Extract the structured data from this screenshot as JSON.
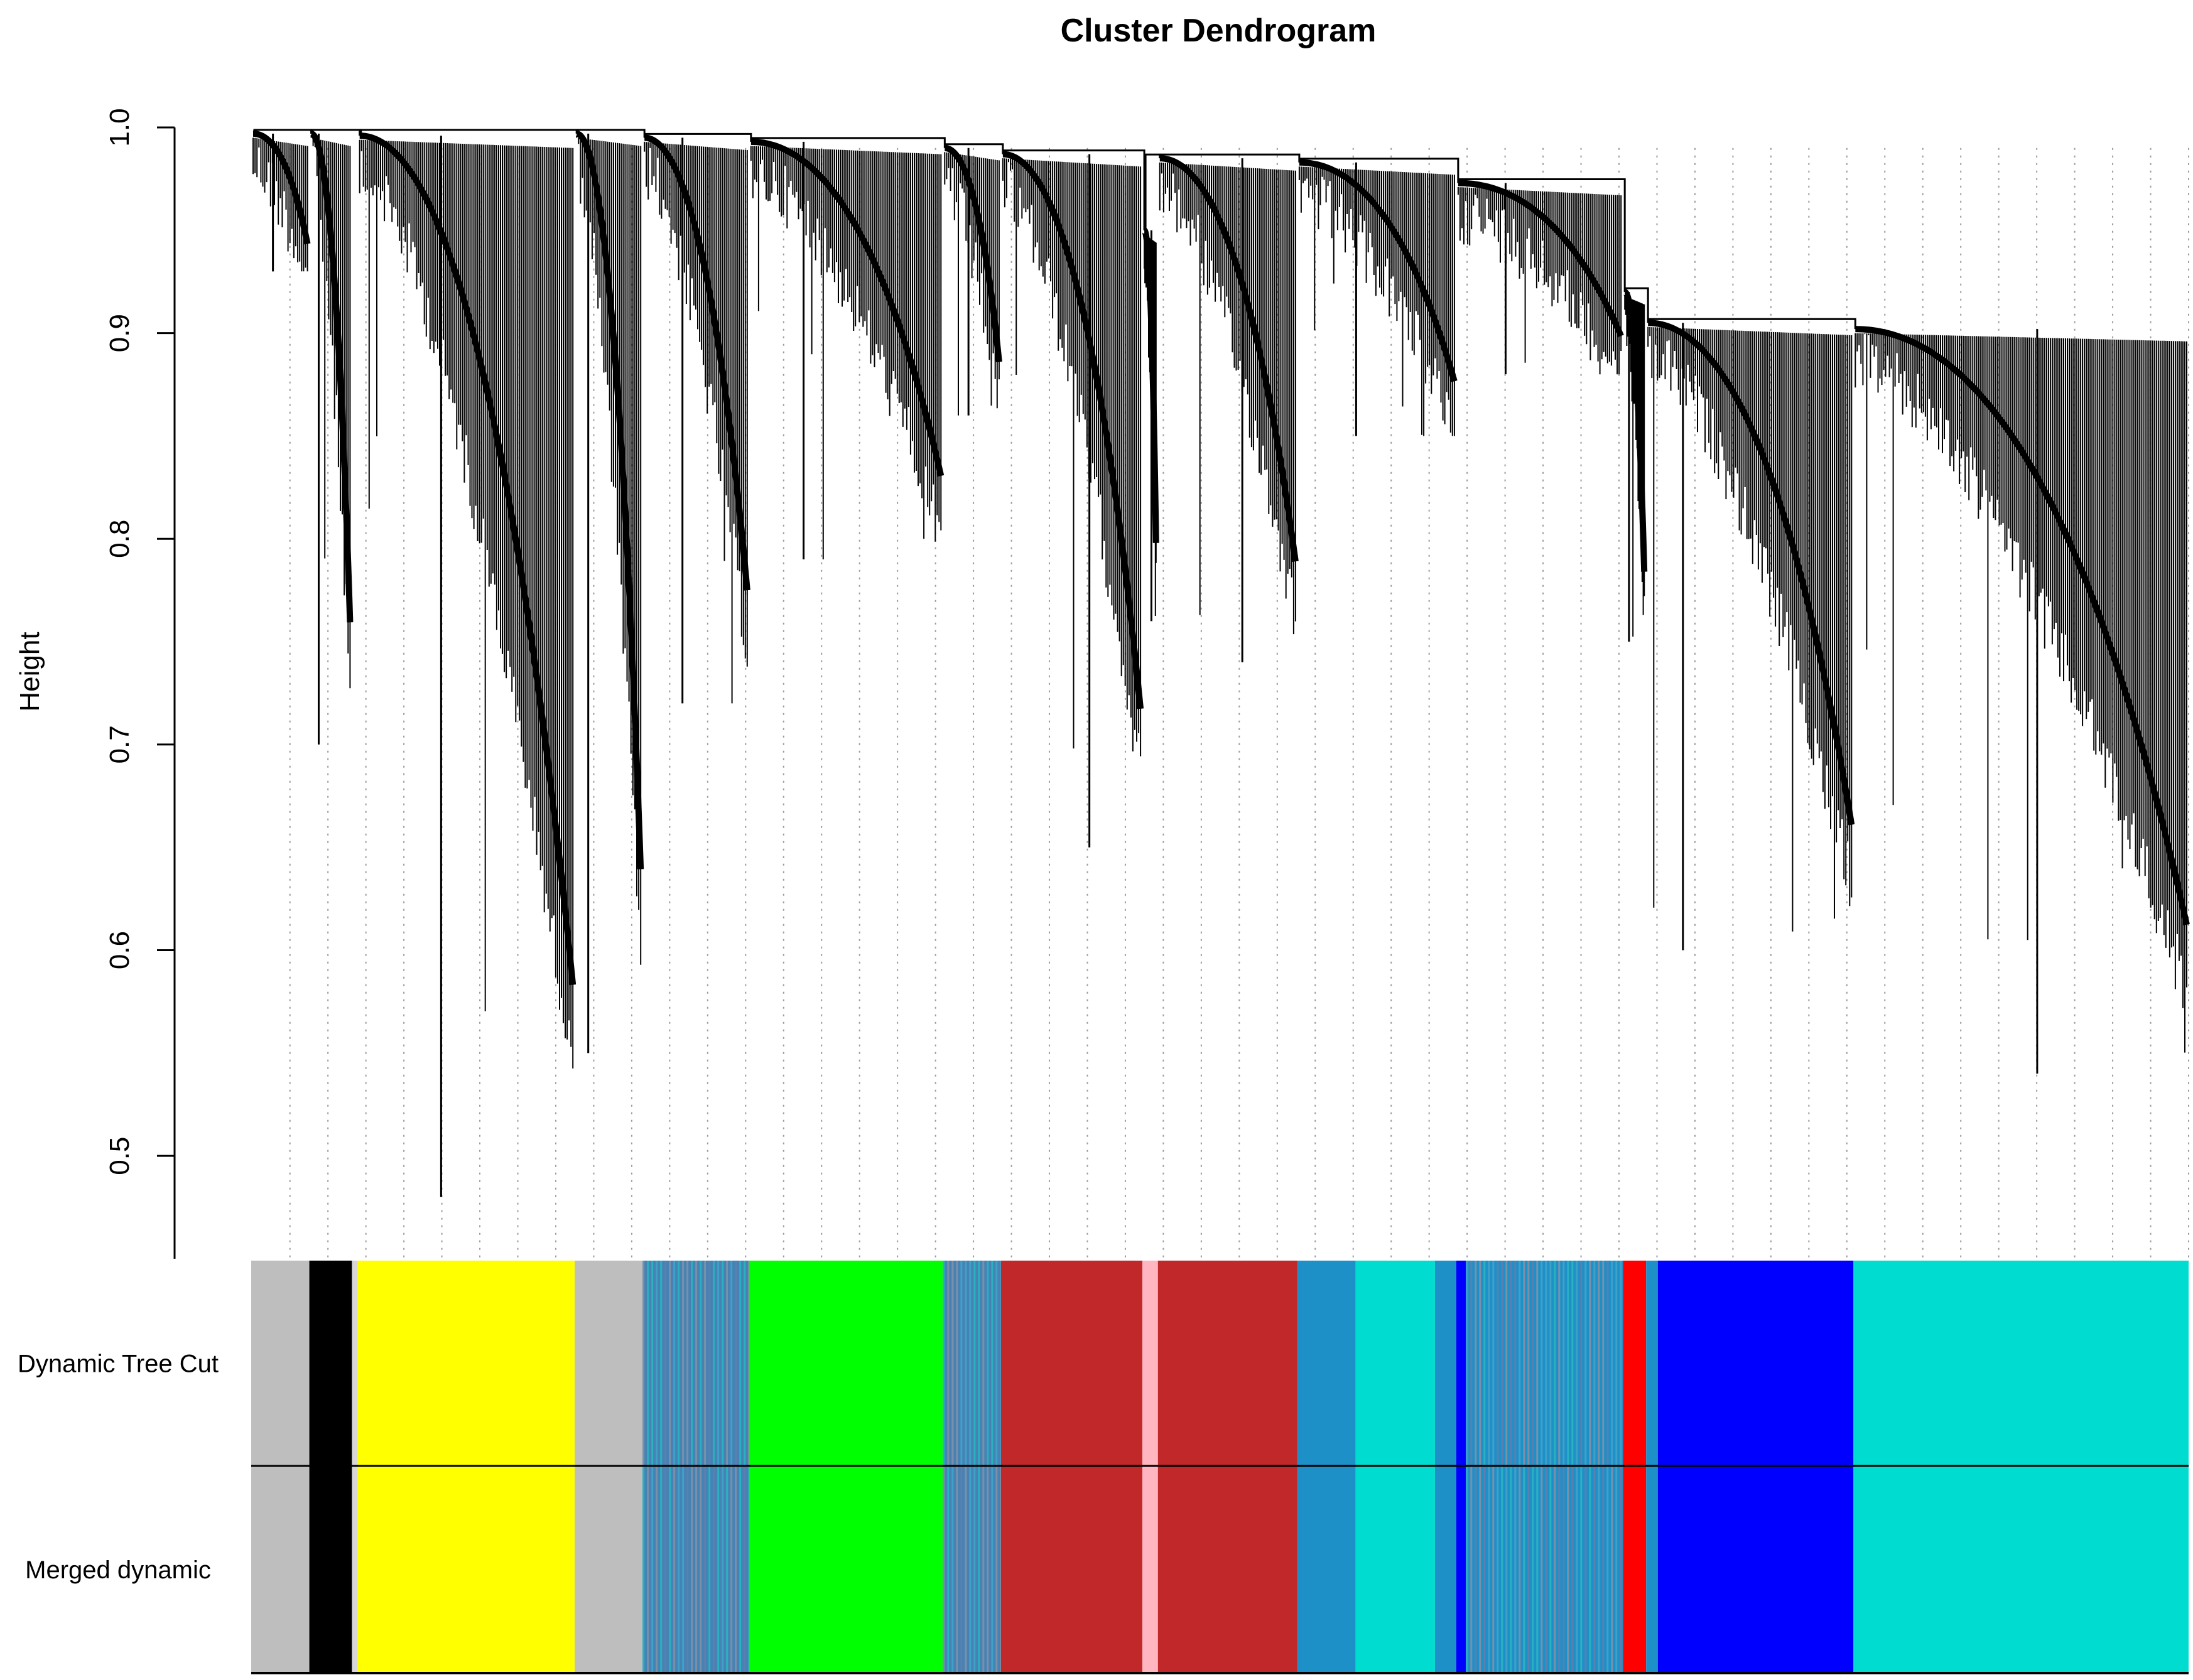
{
  "chart_data": {
    "type": "dendrogram",
    "title": "Cluster Dendrogram",
    "ylabel": "Height",
    "xlabel": "",
    "ylim": [
      0.45,
      1.0
    ],
    "y_ticks": [
      {
        "value": 0.5,
        "label": "0.5"
      },
      {
        "value": 0.6,
        "label": "0.6"
      },
      {
        "value": 0.7,
        "label": "0.7"
      },
      {
        "value": 0.8,
        "label": "0.8"
      },
      {
        "value": 0.9,
        "label": "0.9"
      },
      {
        "value": 1.0,
        "label": "1.0"
      }
    ],
    "reference_line_style": "dotted vertical lines",
    "clusters": [
      {
        "module": "grey",
        "x": [
          0.0,
          0.03
        ],
        "min_height": 0.93,
        "join_height": 0.997
      },
      {
        "module": "black",
        "x": [
          0.03,
          0.052
        ],
        "min_height": 0.7,
        "join_height": 0.997
      },
      {
        "module": "yellow",
        "x": [
          0.055,
          0.167
        ],
        "min_height": 0.48,
        "join_height": 0.996
      },
      {
        "module": "grey",
        "x": [
          0.167,
          0.202
        ],
        "min_height": 0.55,
        "join_height": 0.997
      },
      {
        "module": "steelblue",
        "x": [
          0.202,
          0.257
        ],
        "min_height": 0.72,
        "join_height": 0.995
      },
      {
        "module": "green",
        "x": [
          0.257,
          0.357
        ],
        "min_height": 0.79,
        "join_height": 0.993
      },
      {
        "module": "steelblue",
        "x": [
          0.357,
          0.387
        ],
        "min_height": 0.86,
        "join_height": 0.99
      },
      {
        "module": "firebrick",
        "x": [
          0.387,
          0.46
        ],
        "min_height": 0.65,
        "join_height": 0.987
      },
      {
        "module": "pink",
        "x": [
          0.46,
          0.468
        ],
        "min_height": 0.76,
        "join_height": 0.95
      },
      {
        "module": "firebrick",
        "x": [
          0.468,
          0.54
        ],
        "min_height": 0.74,
        "join_height": 0.985
      },
      {
        "module": "turquoise",
        "x": [
          0.54,
          0.622
        ],
        "min_height": 0.85,
        "join_height": 0.983
      },
      {
        "module": "steelblue",
        "x": [
          0.622,
          0.708
        ],
        "min_height": 0.88,
        "join_height": 0.973
      },
      {
        "module": "red",
        "x": [
          0.708,
          0.72
        ],
        "min_height": 0.75,
        "join_height": 0.92
      },
      {
        "module": "blue",
        "x": [
          0.72,
          0.827
        ],
        "min_height": 0.6,
        "join_height": 0.905
      },
      {
        "module": "turquoise",
        "x": [
          0.827,
          1.0
        ],
        "min_height": 0.54,
        "join_height": 0.902
      }
    ],
    "color_bars": [
      {
        "label": "Dynamic Tree Cut",
        "segments": [
          {
            "color": "#bebebe",
            "x": [
              0.0,
              0.03
            ]
          },
          {
            "color": "#000000",
            "x": [
              0.03,
              0.052
            ]
          },
          {
            "color": "#d7d7d7",
            "x": [
              0.052,
              0.055
            ]
          },
          {
            "color": "#ffff00",
            "x": [
              0.055,
              0.167
            ]
          },
          {
            "color": "#bebebe",
            "x": [
              0.167,
              0.202
            ]
          },
          {
            "color": "#4682b4",
            "x": [
              0.202,
              0.257
            ],
            "striped": true
          },
          {
            "color": "#00ff00",
            "x": [
              0.257,
              0.357
            ]
          },
          {
            "color": "#4682b4",
            "x": [
              0.357,
              0.387
            ],
            "striped": true
          },
          {
            "color": "#c0282a",
            "x": [
              0.387,
              0.46
            ]
          },
          {
            "color": "#ffb6c1",
            "x": [
              0.46,
              0.468
            ]
          },
          {
            "color": "#c0282a",
            "x": [
              0.468,
              0.54
            ]
          },
          {
            "color": "#1e90c8",
            "x": [
              0.54,
              0.57
            ]
          },
          {
            "color": "#00dcd0",
            "x": [
              0.57,
              0.611
            ]
          },
          {
            "color": "#1e90c8",
            "x": [
              0.611,
              0.622
            ]
          },
          {
            "color": "#0000ff",
            "x": [
              0.622,
              0.627
            ]
          },
          {
            "color": "#1e90c8",
            "x": [
              0.627,
              0.708
            ],
            "striped": true
          },
          {
            "color": "#ff0000",
            "x": [
              0.708,
              0.72
            ]
          },
          {
            "color": "#1e90c8",
            "x": [
              0.72,
              0.726
            ]
          },
          {
            "color": "#0000ff",
            "x": [
              0.726,
              0.827
            ]
          },
          {
            "color": "#00dcd0",
            "x": [
              0.827,
              1.0
            ]
          }
        ]
      },
      {
        "label": "Merged dynamic",
        "segments": [
          {
            "color": "#bebebe",
            "x": [
              0.0,
              0.03
            ]
          },
          {
            "color": "#000000",
            "x": [
              0.03,
              0.052
            ]
          },
          {
            "color": "#d7d7d7",
            "x": [
              0.052,
              0.055
            ]
          },
          {
            "color": "#ffff00",
            "x": [
              0.055,
              0.167
            ]
          },
          {
            "color": "#bebebe",
            "x": [
              0.167,
              0.202
            ]
          },
          {
            "color": "#4682b4",
            "x": [
              0.202,
              0.257
            ],
            "striped": true
          },
          {
            "color": "#00ff00",
            "x": [
              0.257,
              0.357
            ]
          },
          {
            "color": "#4682b4",
            "x": [
              0.357,
              0.387
            ],
            "striped": true
          },
          {
            "color": "#c0282a",
            "x": [
              0.387,
              0.46
            ]
          },
          {
            "color": "#ffb6c1",
            "x": [
              0.46,
              0.468
            ]
          },
          {
            "color": "#c0282a",
            "x": [
              0.468,
              0.54
            ]
          },
          {
            "color": "#1e90c8",
            "x": [
              0.54,
              0.57
            ]
          },
          {
            "color": "#00dcd0",
            "x": [
              0.57,
              0.611
            ]
          },
          {
            "color": "#1e90c8",
            "x": [
              0.611,
              0.622
            ]
          },
          {
            "color": "#0000ff",
            "x": [
              0.622,
              0.627
            ]
          },
          {
            "color": "#1e90c8",
            "x": [
              0.627,
              0.708
            ],
            "striped": true
          },
          {
            "color": "#ff0000",
            "x": [
              0.708,
              0.72
            ]
          },
          {
            "color": "#1e90c8",
            "x": [
              0.72,
              0.726
            ]
          },
          {
            "color": "#0000ff",
            "x": [
              0.726,
              0.827
            ]
          },
          {
            "color": "#00dcd0",
            "x": [
              0.827,
              1.0
            ]
          }
        ]
      }
    ]
  }
}
